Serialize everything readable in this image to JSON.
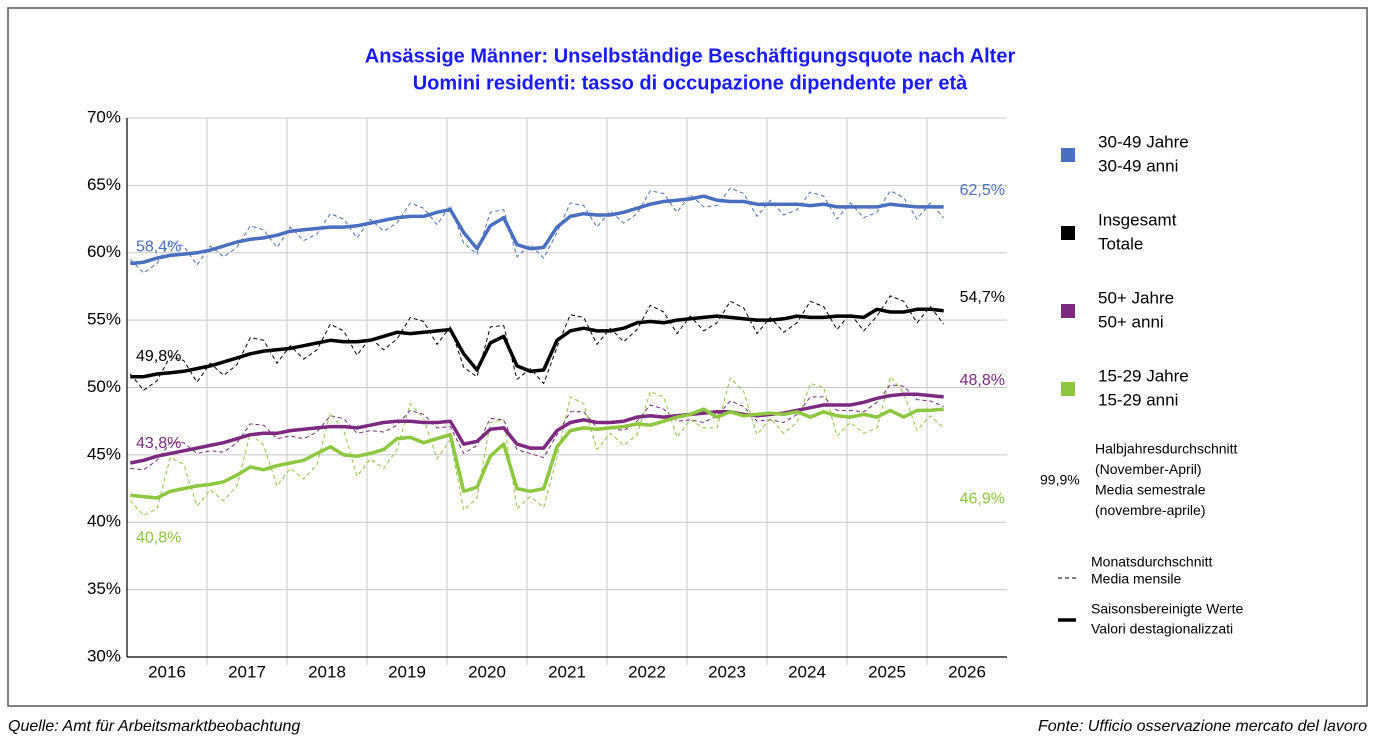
{
  "chart_data": {
    "type": "line",
    "title": "Ansässige Männer: Unselbständige Beschäftigungsquote nach Alter",
    "subtitle": "Uomini residenti: tasso di occupazione dipendente per età",
    "categories": [
      "2016",
      "2017",
      "2018",
      "2019",
      "2020",
      "2021",
      "2022",
      "2023",
      "2024",
      "2025",
      "2026"
    ],
    "ylim": [
      30,
      70
    ],
    "yticks": [
      {
        "value": 30,
        "label": "30%"
      },
      {
        "value": 35,
        "label": "35%"
      },
      {
        "value": 40,
        "label": "40%"
      },
      {
        "value": 45,
        "label": "45%"
      },
      {
        "value": 50,
        "label": "50%"
      },
      {
        "value": 55,
        "label": "55%"
      },
      {
        "value": 60,
        "label": "60%"
      },
      {
        "value": 65,
        "label": "65%"
      },
      {
        "value": 70,
        "label": "70%"
      }
    ],
    "grid": true,
    "legend": "right",
    "series": [
      {
        "name": "30-49 Jahre",
        "name_it": "30-49 anni",
        "color": "#4a6fbf",
        "start_label": "58,4%",
        "end_label": "62,5%",
        "adjusted": [
          59.2,
          59.3,
          59.6,
          59.8,
          59.9,
          60.0,
          60.2,
          60.5,
          60.8,
          61.0,
          61.1,
          61.3,
          61.6,
          61.7,
          61.8,
          61.9,
          61.9,
          62.0,
          62.2,
          62.4,
          62.6,
          62.7,
          62.7,
          63.0,
          63.2,
          61.5,
          60.3,
          62.0,
          62.6,
          60.6,
          60.3,
          60.4,
          61.9,
          62.7,
          62.9,
          62.8,
          62.8,
          63.0,
          63.3,
          63.6,
          63.8,
          63.9,
          64.0,
          64.2,
          63.9,
          63.8,
          63.8,
          63.6,
          63.6,
          63.6,
          63.6,
          63.5,
          63.6,
          63.4,
          63.4,
          63.4,
          63.4,
          63.6,
          63.5,
          63.4,
          63.4,
          63.4
        ],
        "monthly": [
          59.5,
          58.5,
          59.2,
          60.8,
          60.5,
          59.1,
          60.5,
          59.7,
          60.4,
          62.0,
          61.7,
          60.4,
          61.9,
          60.9,
          61.4,
          62.9,
          62.5,
          61.1,
          62.5,
          61.6,
          62.2,
          63.7,
          63.3,
          62.1,
          63.5,
          60.7,
          59.9,
          63.0,
          63.2,
          59.7,
          60.6,
          59.6,
          61.5,
          63.7,
          63.5,
          61.9,
          63.1,
          62.2,
          62.9,
          64.6,
          64.4,
          63.0,
          64.3,
          63.4,
          63.5,
          64.8,
          64.4,
          62.7,
          63.9,
          62.8,
          63.2,
          64.5,
          64.2,
          62.5,
          63.7,
          62.6,
          63.0,
          64.6,
          64.1,
          62.5,
          63.7,
          62.6
        ]
      },
      {
        "name": "Insgesamt",
        "name_it": "Totale",
        "color": "#000000",
        "start_label": "49,8%",
        "end_label": "54,7%",
        "adjusted": [
          50.8,
          50.8,
          51.0,
          51.1,
          51.2,
          51.4,
          51.6,
          51.9,
          52.2,
          52.5,
          52.7,
          52.8,
          52.9,
          53.1,
          53.3,
          53.5,
          53.4,
          53.4,
          53.5,
          53.8,
          54.1,
          54.0,
          54.1,
          54.2,
          54.3,
          52.5,
          51.3,
          53.3,
          53.8,
          51.6,
          51.2,
          51.3,
          53.5,
          54.2,
          54.4,
          54.2,
          54.2,
          54.4,
          54.8,
          54.9,
          54.8,
          55.0,
          55.1,
          55.2,
          55.3,
          55.2,
          55.1,
          55.0,
          55.0,
          55.1,
          55.3,
          55.2,
          55.2,
          55.3,
          55.3,
          55.2,
          55.8,
          55.6,
          55.6,
          55.8,
          55.8,
          55.7
        ],
        "monthly": [
          51.0,
          49.8,
          50.5,
          52.3,
          52.0,
          50.4,
          51.8,
          50.9,
          51.7,
          53.7,
          53.5,
          51.8,
          53.1,
          52.1,
          52.8,
          54.7,
          54.2,
          52.4,
          53.7,
          52.8,
          53.6,
          55.2,
          54.9,
          53.2,
          54.5,
          51.5,
          50.8,
          54.5,
          54.6,
          50.6,
          51.4,
          50.3,
          53.0,
          55.4,
          55.2,
          53.2,
          54.4,
          53.4,
          54.3,
          56.1,
          55.6,
          54.0,
          55.3,
          54.2,
          54.8,
          56.4,
          55.9,
          54.0,
          55.2,
          54.1,
          54.8,
          56.4,
          56.0,
          54.3,
          55.5,
          54.2,
          55.3,
          56.8,
          56.4,
          54.8,
          56.0,
          54.7
        ]
      },
      {
        "name": "50+ Jahre",
        "name_it": "50+ anni",
        "color": "#7b2a7f",
        "start_label": "43,8%",
        "end_label": "48,8%",
        "adjusted": [
          44.4,
          44.6,
          44.9,
          45.1,
          45.3,
          45.5,
          45.7,
          45.9,
          46.2,
          46.5,
          46.6,
          46.6,
          46.8,
          46.9,
          47.0,
          47.1,
          47.1,
          47.0,
          47.2,
          47.4,
          47.5,
          47.5,
          47.4,
          47.4,
          47.5,
          45.8,
          46.0,
          46.9,
          47.0,
          45.8,
          45.5,
          45.5,
          46.8,
          47.4,
          47.6,
          47.4,
          47.4,
          47.5,
          47.8,
          47.9,
          47.8,
          47.9,
          48.0,
          48.1,
          48.2,
          48.2,
          48.0,
          47.9,
          48.0,
          48.1,
          48.3,
          48.5,
          48.7,
          48.7,
          48.7,
          48.9,
          49.2,
          49.4,
          49.5,
          49.5,
          49.4,
          49.3
        ],
        "monthly": [
          44.0,
          43.9,
          44.6,
          45.9,
          45.9,
          45.1,
          45.3,
          45.2,
          45.9,
          47.3,
          47.2,
          46.2,
          46.4,
          46.2,
          46.7,
          47.9,
          47.7,
          46.6,
          46.8,
          46.7,
          47.2,
          48.3,
          48.0,
          47.0,
          47.1,
          45.1,
          45.7,
          47.7,
          47.6,
          45.4,
          45.1,
          44.8,
          46.5,
          48.2,
          48.2,
          47.0,
          47.0,
          46.8,
          47.5,
          48.7,
          48.4,
          47.5,
          47.6,
          47.4,
          47.9,
          49.0,
          48.6,
          47.5,
          47.6,
          47.4,
          48.0,
          49.3,
          49.3,
          48.3,
          48.3,
          48.2,
          48.9,
          50.2,
          50.1,
          49.1,
          49.0,
          48.6
        ]
      },
      {
        "name": "15-29 Jahre",
        "name_it": "15-29 anni",
        "color": "#8dc63f",
        "start_label": "40,8%",
        "end_label": "46,9%",
        "adjusted": [
          42.0,
          41.9,
          41.8,
          42.3,
          42.5,
          42.7,
          42.8,
          43.0,
          43.5,
          44.1,
          43.9,
          44.2,
          44.4,
          44.6,
          45.1,
          45.6,
          45.0,
          44.9,
          45.1,
          45.4,
          46.2,
          46.3,
          45.9,
          46.2,
          46.5,
          42.3,
          42.6,
          44.9,
          45.8,
          42.5,
          42.3,
          42.5,
          45.6,
          46.8,
          47.0,
          46.9,
          47.0,
          47.1,
          47.3,
          47.2,
          47.5,
          47.8,
          48.0,
          48.4,
          47.8,
          48.2,
          47.9,
          48.0,
          48.1,
          48.0,
          48.2,
          47.8,
          48.2,
          47.9,
          47.8,
          48.0,
          47.8,
          48.3,
          47.8,
          48.3,
          48.3,
          48.4
        ],
        "monthly": [
          41.6,
          40.5,
          41.0,
          44.8,
          44.3,
          41.2,
          42.4,
          41.6,
          42.7,
          46.6,
          45.7,
          42.7,
          44.0,
          43.2,
          44.3,
          48.1,
          46.8,
          43.4,
          44.7,
          44.0,
          45.4,
          48.8,
          47.7,
          44.7,
          46.1,
          40.9,
          41.8,
          47.4,
          47.6,
          41.0,
          41.9,
          41.1,
          44.8,
          49.3,
          48.8,
          45.4,
          46.6,
          45.7,
          46.5,
          49.7,
          49.3,
          46.3,
          47.6,
          47.0,
          47.0,
          50.7,
          49.7,
          46.5,
          47.7,
          46.6,
          47.4,
          50.3,
          50.0,
          46.4,
          47.4,
          46.6,
          47.0,
          50.8,
          49.6,
          46.8,
          47.9,
          47.0
        ]
      }
    ],
    "halfyear_legend": {
      "sample": "99,9%",
      "lines": [
        "Halbjahresdurchschnitt",
        "(November-April)",
        "Media semestrale",
        "(novembre-aprile)"
      ]
    },
    "monthly_legend": [
      "Monatsdurchschnitt",
      "Media mensile"
    ],
    "adjusted_legend": [
      "Saisonsbereinigte Werte",
      "Valori destagionalizzati"
    ],
    "source_de": "Quelle: Amt für Arbeitsmarktbeobachtung",
    "source_it": "Fonte: Ufficio osservazione mercato del lavoro"
  }
}
